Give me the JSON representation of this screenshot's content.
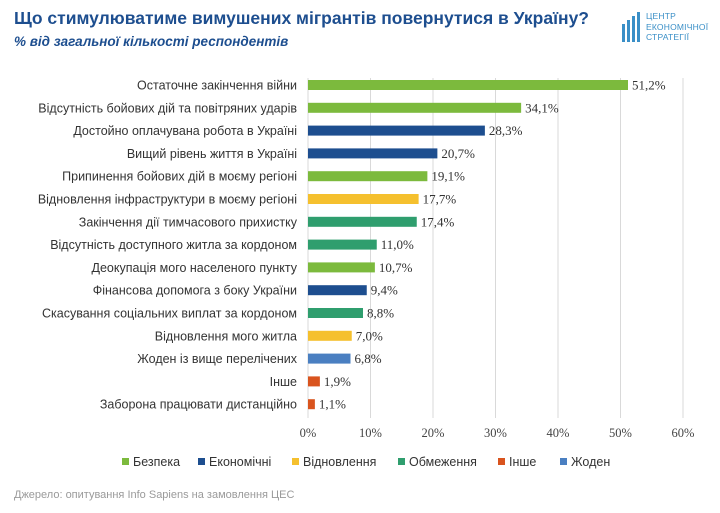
{
  "header": {
    "title": "Що стимулюватиме вимушених мігрантів повернутися в Україну?",
    "subtitle": "% від загальної кількості респондентів"
  },
  "logo": {
    "lines": [
      "ЦЕНТР",
      "ЕКОНОМІЧНОЇ",
      "СТРАТЕГІЇ"
    ],
    "color": "#3a8fc7"
  },
  "source": "Джерело: опитування Info Sapiens на замовлення ЦЕС",
  "chart_data": {
    "type": "bar",
    "orientation": "horizontal",
    "title": "",
    "xlim": [
      0,
      60
    ],
    "x_ticks": [
      "0%",
      "10%",
      "20%",
      "30%",
      "40%",
      "50%",
      "60%"
    ],
    "grid": "vertical",
    "legend_position": "bottom",
    "categories": [
      "Остаточне закінчення війни",
      "Відсутність бойових дій та повітряних ударів",
      "Достойно оплачувана робота в Україні",
      "Вищий рівень життя в Україні",
      "Припинення бойових дій в моєму регіоні",
      "Відновлення інфраструктури в моєму регіоні",
      "Закінчення дії тимчасового прихистку",
      "Відсутність доступного житла за кордоном",
      "Деокупація мого населеного пункту",
      "Фінансова допомога з боку України",
      "Скасування соціальних виплат за кордоном",
      "Відновлення мого житла",
      "Жоден із вище перелічених",
      "Інше",
      "Заборона працювати дистанційно"
    ],
    "values": [
      51.2,
      34.1,
      28.3,
      20.7,
      19.1,
      17.7,
      17.4,
      11.0,
      10.7,
      9.4,
      8.8,
      7.0,
      6.8,
      1.9,
      1.1
    ],
    "value_labels": [
      "51,2%",
      "34,1%",
      "28,3%",
      "20,7%",
      "19,1%",
      "17,7%",
      "17,4%",
      "11,0%",
      "10,7%",
      "9,4%",
      "8,8%",
      "7,0%",
      "6,8%",
      "1,9%",
      "1,1%"
    ],
    "groups": [
      0,
      0,
      1,
      1,
      0,
      2,
      3,
      3,
      0,
      1,
      3,
      2,
      5,
      4,
      4
    ],
    "legend": [
      {
        "name": "Безпека",
        "color": "#7cba3d"
      },
      {
        "name": "Економічні",
        "color": "#1d4e8f"
      },
      {
        "name": "Відновлення",
        "color": "#f5c02e"
      },
      {
        "name": "Обмеження",
        "color": "#2f9e6e"
      },
      {
        "name": "Інше",
        "color": "#d9541e"
      },
      {
        "name": "Жоден",
        "color": "#4a7fc1"
      }
    ]
  }
}
